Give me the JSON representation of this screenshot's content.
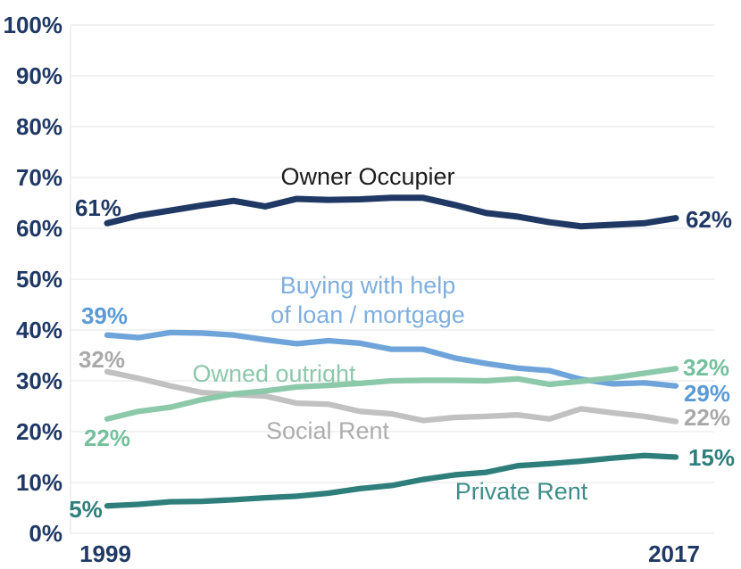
{
  "chart_data": {
    "type": "line",
    "title": "",
    "xlabel": "",
    "ylabel": "",
    "x": [
      1999,
      2000,
      2001,
      2002,
      2003,
      2004,
      2005,
      2006,
      2007,
      2008,
      2009,
      2010,
      2011,
      2012,
      2013,
      2014,
      2015,
      2016,
      2017
    ],
    "xtick_labels": [
      "1999",
      "2017"
    ],
    "ylim": [
      0,
      100
    ],
    "yticks": [
      0,
      10,
      20,
      30,
      40,
      50,
      60,
      70,
      80,
      90,
      100
    ],
    "ytick_labels": [
      "0%",
      "10%",
      "20%",
      "30%",
      "40%",
      "50%",
      "60%",
      "70%",
      "80%",
      "90%",
      "100%"
    ],
    "grid": "horizontal",
    "legend": "inline-labels",
    "background_color": "#ffffff",
    "gridline_color": "#e9e9e9",
    "axis_label_color": "#1F3864",
    "series": [
      {
        "name": "Owner Occupier",
        "label_lines": [
          "Owner Occupier"
        ],
        "color": "#1F3864",
        "label_color": "#1c1c1c",
        "value_label_color": "#1F3864",
        "start_label": "61%",
        "end_label": "62%",
        "values": [
          61,
          62.5,
          63.5,
          64.5,
          65.4,
          64.3,
          65.8,
          65.6,
          65.7,
          66,
          66,
          64.6,
          63,
          62.3,
          61.2,
          60.4,
          60.7,
          61,
          62
        ]
      },
      {
        "name": "Buying with help of loan / mortgage",
        "label_lines": [
          "Buying with help",
          "of loan / mortgage"
        ],
        "color": "#6FA4DB",
        "label_color": "#7FAFDF",
        "value_label_color": "#5B9BD5",
        "start_label": "39%",
        "end_label": "29%",
        "values": [
          39,
          38.5,
          39.5,
          39.4,
          39,
          38.1,
          37.3,
          37.9,
          37.4,
          36.2,
          36.2,
          34.5,
          33.4,
          32.5,
          32,
          30.3,
          29.4,
          29.6,
          29
        ]
      },
      {
        "name": "Owned outright",
        "label_lines": [
          "Owned outright"
        ],
        "color": "#8CC8AA",
        "label_color": "#8CC8AA",
        "value_label_color": "#74C09D",
        "start_label": "22%",
        "end_label": "32%",
        "values": [
          22.5,
          24,
          24.8,
          26.3,
          27.4,
          28,
          28.8,
          29.1,
          29.5,
          30,
          30.1,
          30.1,
          30,
          30.4,
          29.3,
          29.9,
          30.6,
          31.5,
          32.4
        ]
      },
      {
        "name": "Social Rent",
        "label_lines": [
          "Social Rent"
        ],
        "color": "#C1C1C1",
        "label_color": "#ADADAD",
        "value_label_color": "#A9A9A9",
        "start_label": "32%",
        "end_label": "22%",
        "values": [
          31.8,
          30.5,
          29,
          27.7,
          27.3,
          27,
          25.6,
          25.4,
          24,
          23.5,
          22.2,
          22.8,
          23,
          23.3,
          22.5,
          24.5,
          23.7,
          23,
          22
        ]
      },
      {
        "name": "Private Rent",
        "label_lines": [
          "Private Rent"
        ],
        "color": "#2E7E7C",
        "label_color": "#3E8D89",
        "value_label_color": "#2E7E7C",
        "start_label": "5%",
        "end_label": "15%",
        "values": [
          5.4,
          5.7,
          6.2,
          6.3,
          6.6,
          7,
          7.3,
          7.9,
          8.8,
          9.4,
          10.6,
          11.5,
          12,
          13.3,
          13.7,
          14.2,
          14.8,
          15.3,
          15
        ]
      }
    ]
  }
}
